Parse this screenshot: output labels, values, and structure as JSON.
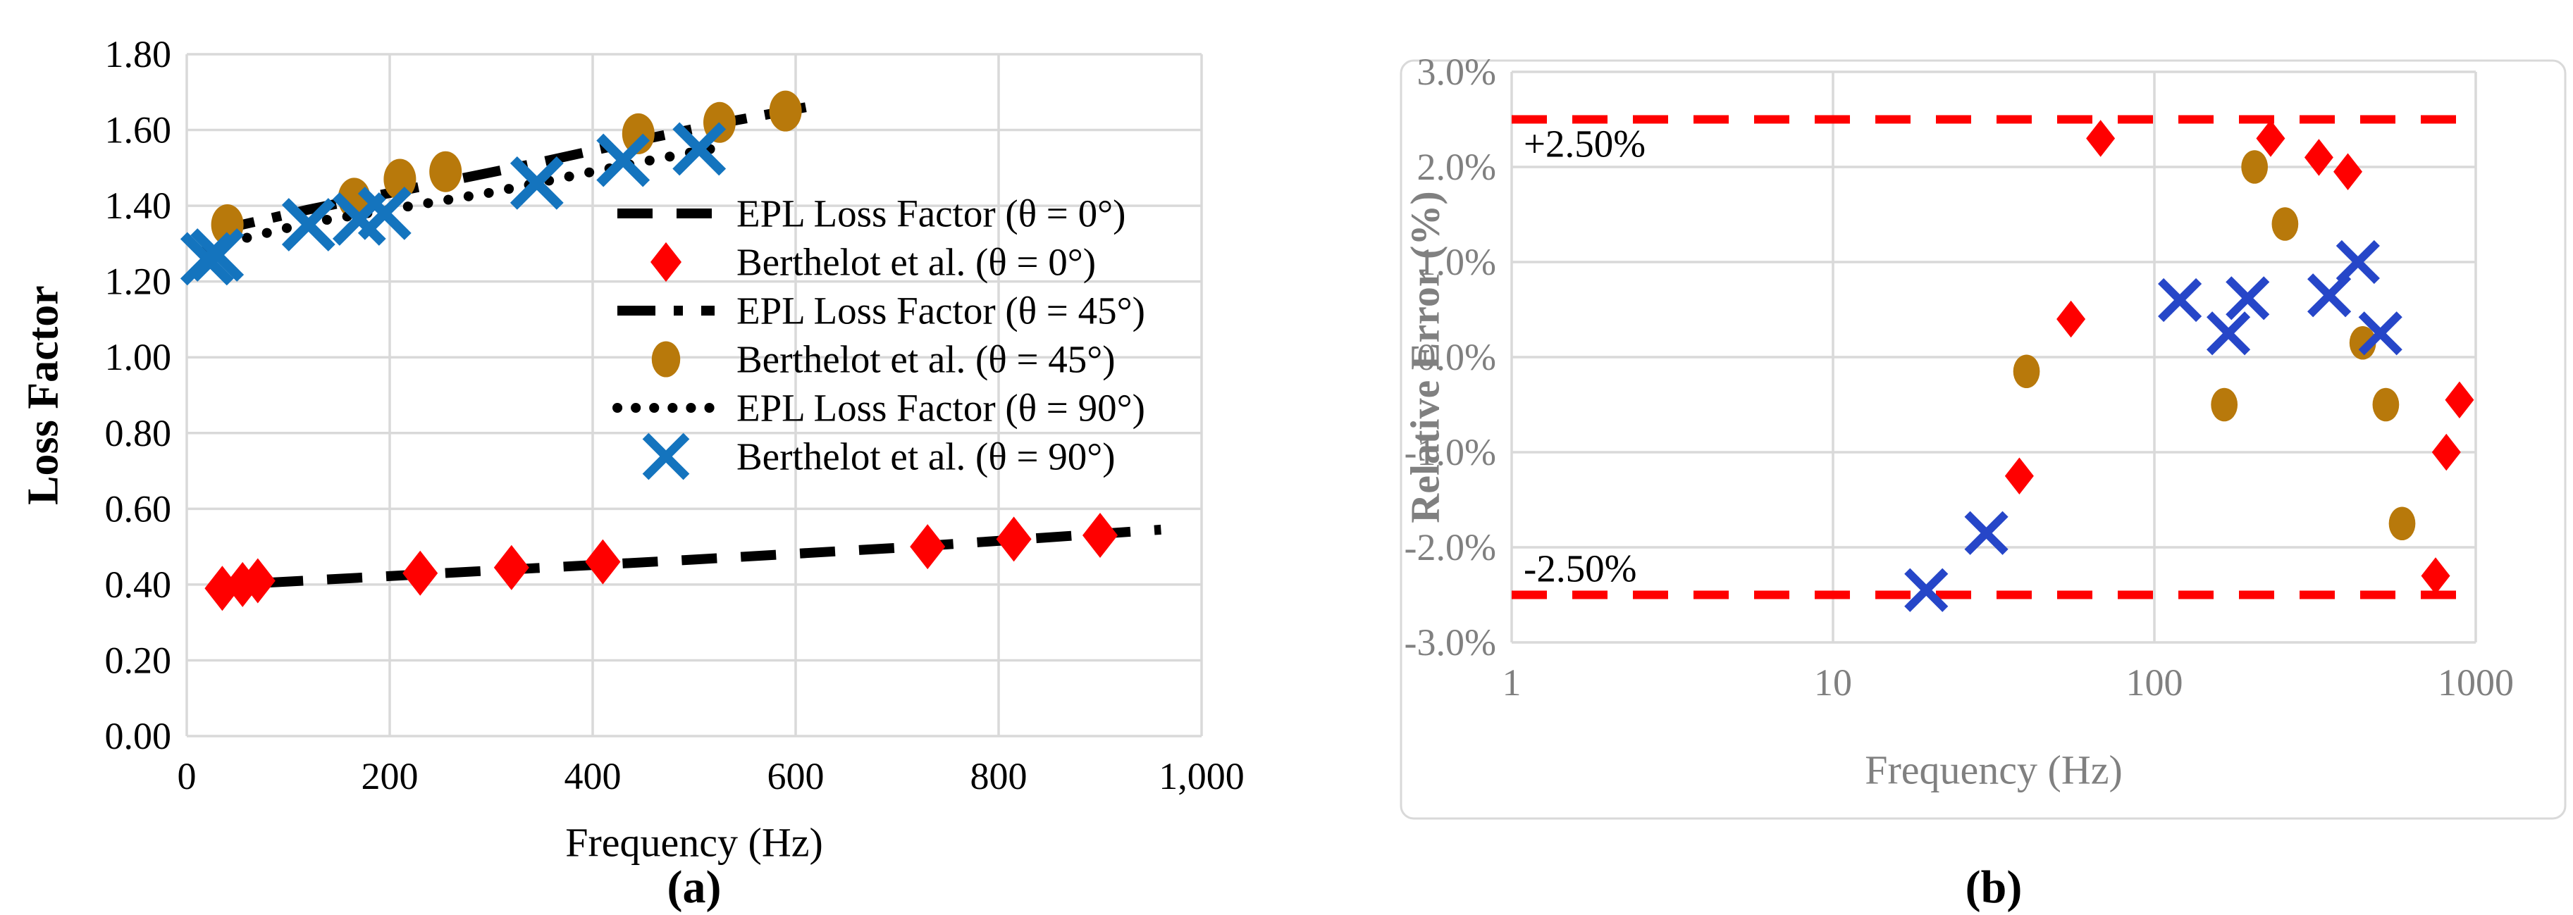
{
  "figure": {
    "caption_a": "(a)",
    "caption_b": "(b)",
    "background_color": "#FFFFFF",
    "gridline_color": "#D9D9D9",
    "border_color": "#D9D9D9"
  },
  "chart_data": [
    {
      "id": "a",
      "type": "line+scatter",
      "title": "",
      "xlabel": "Frequency (Hz)",
      "ylabel": "Loss Factor",
      "xscale": "linear",
      "xlim": [
        0,
        1000
      ],
      "ylim": [
        0,
        1.8
      ],
      "grid": true,
      "legend_position": "inside-right",
      "axis_text_color": "#000000",
      "xticks": [
        {
          "v": 0,
          "label": "0"
        },
        {
          "v": 200,
          "label": "200"
        },
        {
          "v": 400,
          "label": "400"
        },
        {
          "v": 600,
          "label": "600"
        },
        {
          "v": 800,
          "label": "800"
        },
        {
          "v": 1000,
          "label": "1,000"
        }
      ],
      "yticks": [
        {
          "v": 0.0,
          "label": "0.00"
        },
        {
          "v": 0.2,
          "label": "0.20"
        },
        {
          "v": 0.4,
          "label": "0.40"
        },
        {
          "v": 0.6,
          "label": "0.60"
        },
        {
          "v": 0.8,
          "label": "0.80"
        },
        {
          "v": 1.0,
          "label": "1.00"
        },
        {
          "v": 1.2,
          "label": "1.20"
        },
        {
          "v": 1.4,
          "label": "1.40"
        },
        {
          "v": 1.6,
          "label": "1.60"
        },
        {
          "v": 1.8,
          "label": "1.80"
        }
      ],
      "series": [
        {
          "name": "EPL Loss Factor (θ = 0°)",
          "kind": "line",
          "dash": "dashed",
          "color": "#000000",
          "points": [
            [
              80,
              0.405
            ],
            [
              300,
              0.437
            ],
            [
              500,
              0.466
            ],
            [
              700,
              0.497
            ],
            [
              960,
              0.545
            ]
          ]
        },
        {
          "name": "Berthelot et al. (θ = 0°)",
          "kind": "scatter",
          "marker": "diamond",
          "color": "#FF0000",
          "points": [
            [
              35,
              0.39
            ],
            [
              55,
              0.4
            ],
            [
              70,
              0.41
            ],
            [
              230,
              0.43
            ],
            [
              320,
              0.445
            ],
            [
              410,
              0.46
            ],
            [
              730,
              0.5
            ],
            [
              815,
              0.52
            ],
            [
              900,
              0.53
            ]
          ]
        },
        {
          "name": "EPL Loss Factor (θ = 45°)",
          "kind": "line",
          "dash": "dashdot",
          "color": "#000000",
          "points": [
            [
              30,
              1.335
            ],
            [
              120,
              1.39
            ],
            [
              230,
              1.45
            ],
            [
              340,
              1.51
            ],
            [
              450,
              1.575
            ],
            [
              530,
              1.62
            ],
            [
              610,
              1.66
            ]
          ]
        },
        {
          "name": "Berthelot et al. (θ = 45°)",
          "kind": "scatter",
          "marker": "circle",
          "color": "#B8790B",
          "points": [
            [
              40,
              1.35
            ],
            [
              165,
              1.42
            ],
            [
              210,
              1.47
            ],
            [
              255,
              1.49
            ],
            [
              445,
              1.59
            ],
            [
              525,
              1.62
            ],
            [
              590,
              1.65
            ]
          ]
        },
        {
          "name": "EPL Loss Factor (θ = 90°)",
          "kind": "line",
          "dash": "dotted",
          "color": "#000000",
          "points": [
            [
              20,
              1.29
            ],
            [
              120,
              1.355
            ],
            [
              200,
              1.39
            ],
            [
              300,
              1.435
            ],
            [
              400,
              1.49
            ],
            [
              505,
              1.545
            ],
            [
              535,
              1.558
            ]
          ]
        },
        {
          "name": "Berthelot et al. (θ = 90°)",
          "kind": "scatter",
          "marker": "x",
          "color": "#1474BE",
          "points": [
            [
              20,
              1.26
            ],
            [
              30,
              1.27
            ],
            [
              120,
              1.35
            ],
            [
              170,
              1.365
            ],
            [
              195,
              1.38
            ],
            [
              345,
              1.46
            ],
            [
              430,
              1.52
            ],
            [
              505,
              1.55
            ]
          ]
        }
      ]
    },
    {
      "id": "b",
      "type": "scatter",
      "title": "",
      "xlabel": "Frequency (Hz)",
      "ylabel": "Relative Error (%)",
      "xscale": "log",
      "xlim": [
        1,
        1000
      ],
      "ylim": [
        -3,
        3
      ],
      "grid": true,
      "legend_position": "none",
      "axis_text_color": "#808080",
      "has_border_box": true,
      "xticks": [
        {
          "v": 1,
          "label": "1"
        },
        {
          "v": 10,
          "label": "10"
        },
        {
          "v": 100,
          "label": "100"
        },
        {
          "v": 1000,
          "label": "1000"
        }
      ],
      "yticks": [
        {
          "v": 3,
          "label": "3.0%"
        },
        {
          "v": 2,
          "label": "2.0%"
        },
        {
          "v": 1,
          "label": "1.0%"
        },
        {
          "v": 0,
          "label": "0.0%"
        },
        {
          "v": -1,
          "label": "-1.0%"
        },
        {
          "v": -2,
          "label": "-2.0%"
        },
        {
          "v": -3,
          "label": "-3.0%"
        }
      ],
      "ref_lines": [
        {
          "v": 2.5,
          "label": "+2.50%",
          "color": "#FF0000",
          "style": "dashed"
        },
        {
          "v": -2.5,
          "label": "-2.50%",
          "color": "#FF0000",
          "style": "dashed"
        }
      ],
      "series": [
        {
          "name": "Berthelot et al. (θ = 0°)",
          "kind": "scatter",
          "marker": "diamond",
          "color": "#FF0000",
          "points": [
            [
              38,
              -1.25
            ],
            [
              55,
              0.4
            ],
            [
              68,
              2.3
            ],
            [
              230,
              2.3
            ],
            [
              325,
              2.1
            ],
            [
              400,
              1.95
            ],
            [
              750,
              -2.3
            ],
            [
              810,
              -1.0
            ],
            [
              890,
              -0.45
            ]
          ]
        },
        {
          "name": "Berthelot et al. (θ = 45°)",
          "kind": "scatter",
          "marker": "circle",
          "color": "#B8790B",
          "points": [
            [
              40,
              -0.15
            ],
            [
              165,
              -0.5
            ],
            [
              205,
              2.0
            ],
            [
              255,
              1.4
            ],
            [
              445,
              0.15
            ],
            [
              525,
              -0.5
            ],
            [
              590,
              -1.75
            ]
          ]
        },
        {
          "name": "Berthelot et al. (θ = 90°)",
          "kind": "scatter",
          "marker": "x",
          "color": "#2646C8",
          "points": [
            [
              19.5,
              -2.45
            ],
            [
              30,
              -1.85
            ],
            [
              120,
              0.6
            ],
            [
              170,
              0.25
            ],
            [
              195,
              0.62
            ],
            [
              350,
              0.65
            ],
            [
              430,
              1.0
            ],
            [
              505,
              0.25
            ]
          ]
        }
      ]
    }
  ]
}
